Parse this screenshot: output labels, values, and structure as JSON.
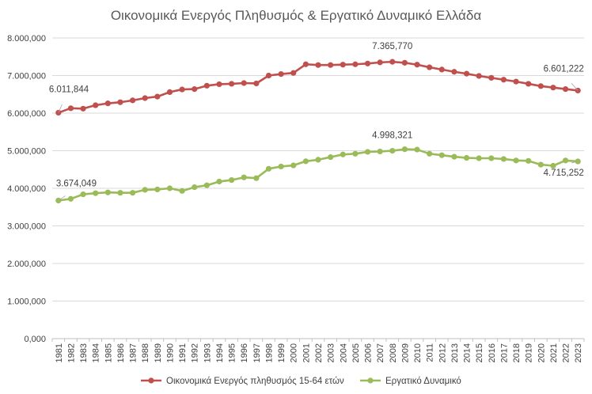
{
  "chart_data": {
    "type": "line",
    "title": "Οικονομικά Ενεργός Πληθυσμός & Εργατικό Δυναμικό Ελλάδα",
    "xlabel": "",
    "ylabel": "",
    "ylim": [
      0,
      8000000
    ],
    "y_ticks": [
      0,
      1000000,
      2000000,
      3000000,
      4000000,
      5000000,
      6000000,
      7000000,
      8000000
    ],
    "y_tick_labels": [
      "0,000",
      "1.000,000",
      "2.000,000",
      "3.000,000",
      "4.000,000",
      "5.000,000",
      "6.000,000",
      "7.000,000",
      "8.000,000"
    ],
    "grid": true,
    "legend_position": "bottom",
    "x": [
      "1981",
      "1982",
      "1983",
      "1984",
      "1985",
      "1986",
      "1987",
      "1988",
      "1989",
      "1990",
      "1991",
      "1992",
      "1993",
      "1994",
      "1995",
      "1996",
      "1997",
      "1998",
      "1999",
      "2000",
      "2001",
      "2002",
      "2003",
      "2004",
      "2005",
      "2006",
      "2007",
      "2008",
      "2009",
      "2010",
      "2011",
      "2012",
      "2013",
      "2014",
      "2015",
      "2016",
      "2017",
      "2018",
      "2019",
      "2020",
      "2021",
      "2022",
      "2023"
    ],
    "series": [
      {
        "name": "Οικονομικά Ενεργός πληθυσμός 15-64 ετών",
        "color": "#c0504d",
        "values": [
          6011844,
          6130000,
          6120000,
          6210000,
          6260000,
          6290000,
          6340000,
          6400000,
          6440000,
          6560000,
          6630000,
          6640000,
          6730000,
          6770000,
          6780000,
          6800000,
          6790000,
          7000000,
          7040000,
          7070000,
          7300000,
          7280000,
          7280000,
          7290000,
          7300000,
          7320000,
          7350000,
          7365770,
          7340000,
          7290000,
          7220000,
          7160000,
          7100000,
          7050000,
          6990000,
          6940000,
          6890000,
          6840000,
          6780000,
          6720000,
          6680000,
          6640000,
          6601222
        ]
      },
      {
        "name": "Εργατικό Δυναμικό",
        "color": "#9bbb59",
        "values": [
          3674049,
          3720000,
          3840000,
          3870000,
          3890000,
          3880000,
          3880000,
          3960000,
          3970000,
          4000000,
          3930000,
          4030000,
          4080000,
          4180000,
          4220000,
          4290000,
          4270000,
          4520000,
          4580000,
          4610000,
          4720000,
          4760000,
          4830000,
          4900000,
          4920000,
          4970000,
          4980000,
          4998321,
          5040000,
          5030000,
          4920000,
          4880000,
          4840000,
          4810000,
          4800000,
          4800000,
          4780000,
          4740000,
          4730000,
          4630000,
          4600000,
          4740000,
          4715252
        ]
      }
    ],
    "annotations": [
      {
        "series": 0,
        "index": 0,
        "text": "6.011,844"
      },
      {
        "series": 0,
        "index": 27,
        "text": "7.365,770"
      },
      {
        "series": 0,
        "index": 42,
        "text": "6.601,222"
      },
      {
        "series": 1,
        "index": 0,
        "text": "3.674,049"
      },
      {
        "series": 1,
        "index": 27,
        "text": "4.998,321"
      },
      {
        "series": 1,
        "index": 42,
        "text": "4.715,252"
      }
    ]
  }
}
